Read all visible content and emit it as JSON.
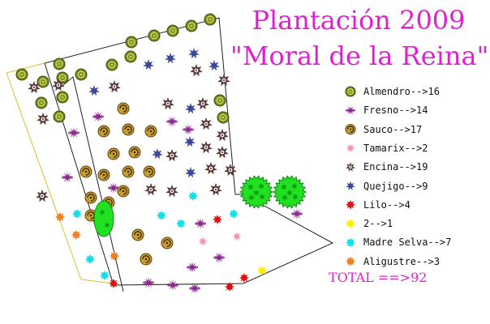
{
  "title": {
    "line1": "Plantación 2009",
    "line2": "\"Moral de la Reina\""
  },
  "colors": {
    "almendro": "#7a8a1c",
    "fresno": "#8a2a90",
    "sauco": "#8a6a14",
    "tamarix": "#f090b0",
    "encina": "#5a3a3a",
    "quejigo": "#3a4a9a",
    "lilo": "#e01010",
    "yellow": "#ffee00",
    "madre_selva": "#10e0e8",
    "aligustre": "#f08020",
    "big_tree": "#22e022",
    "title": "#e020d0"
  },
  "legend": [
    {
      "icon": "almendro-icon",
      "label": "Almendro-->16"
    },
    {
      "icon": "fresno-icon",
      "label": "Fresno-->14"
    },
    {
      "icon": "sauco-icon",
      "label": "Sauco-->17"
    },
    {
      "icon": "tamarix-icon",
      "label": "Tamarix-->2"
    },
    {
      "icon": "encina-icon",
      "label": "Encina-->19"
    },
    {
      "icon": "quejigo-icon",
      "label": "Quejigo-->9"
    },
    {
      "icon": "lilo-icon",
      "label": "Lilo-->4"
    },
    {
      "icon": "yellow-shrub-icon",
      "label": "2-->1"
    },
    {
      "icon": "madre-selva-icon",
      "label": "Madre Selva-->7"
    },
    {
      "icon": "aligustre-icon",
      "label": "Aligustre-->3"
    }
  ],
  "total": "TOTAL ==>92"
}
